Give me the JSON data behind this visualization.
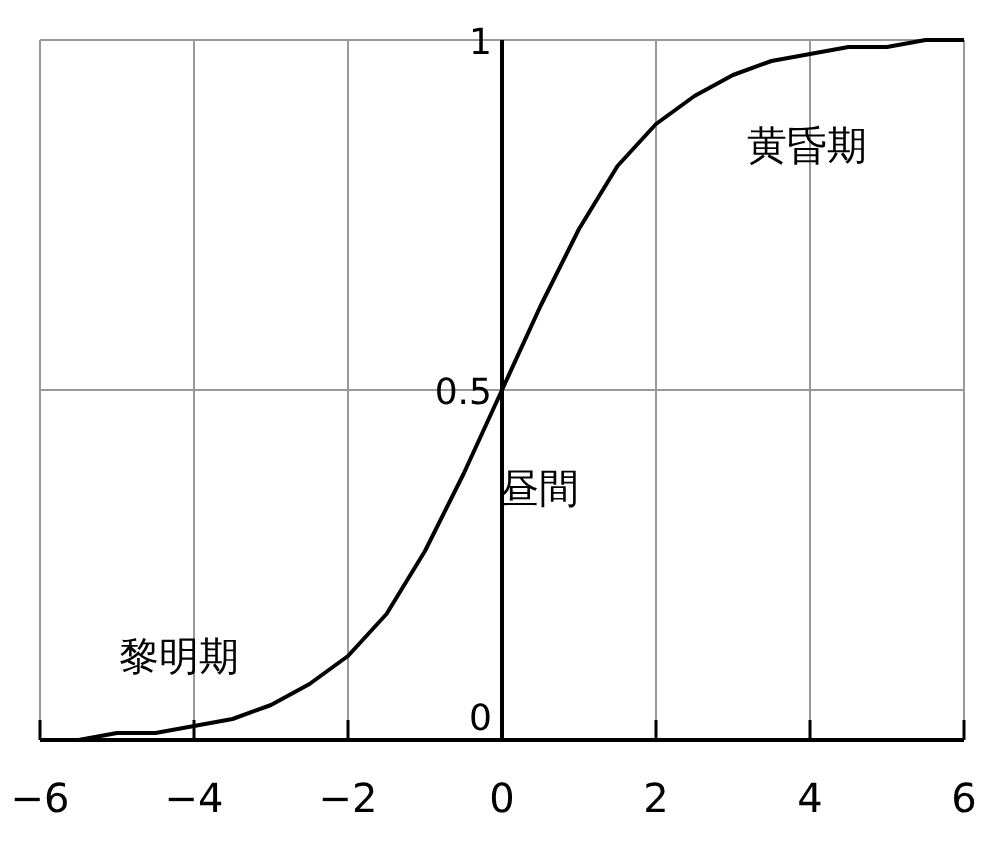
{
  "chart_data": {
    "type": "line",
    "x": [
      -6,
      -5.5,
      -5,
      -4.5,
      -4,
      -3.5,
      -3,
      -2.5,
      -2,
      -1.5,
      -1,
      -0.5,
      0,
      0.5,
      1,
      1.5,
      2,
      2.5,
      3,
      3.5,
      4,
      4.5,
      5,
      5.5,
      6
    ],
    "series": [
      {
        "color": "#000000",
        "values": [
          0,
          0,
          0.01,
          0.01,
          0.02,
          0.03,
          0.05,
          0.08,
          0.12,
          0.18,
          0.27,
          0.38,
          0.5,
          0.62,
          0.73,
          0.82,
          0.88,
          0.92,
          0.95,
          0.97,
          0.98,
          0.99,
          0.99,
          1,
          1
        ]
      }
    ],
    "xlim": [
      -6,
      6
    ],
    "ylim": [
      0,
      1
    ],
    "xticks": [
      -6,
      -4,
      -2,
      0,
      2,
      4,
      6
    ],
    "yticks": [
      0,
      0.5,
      1
    ],
    "grid": true,
    "annotations": [
      "黎明期",
      "昼間",
      "黄昏期"
    ]
  }
}
